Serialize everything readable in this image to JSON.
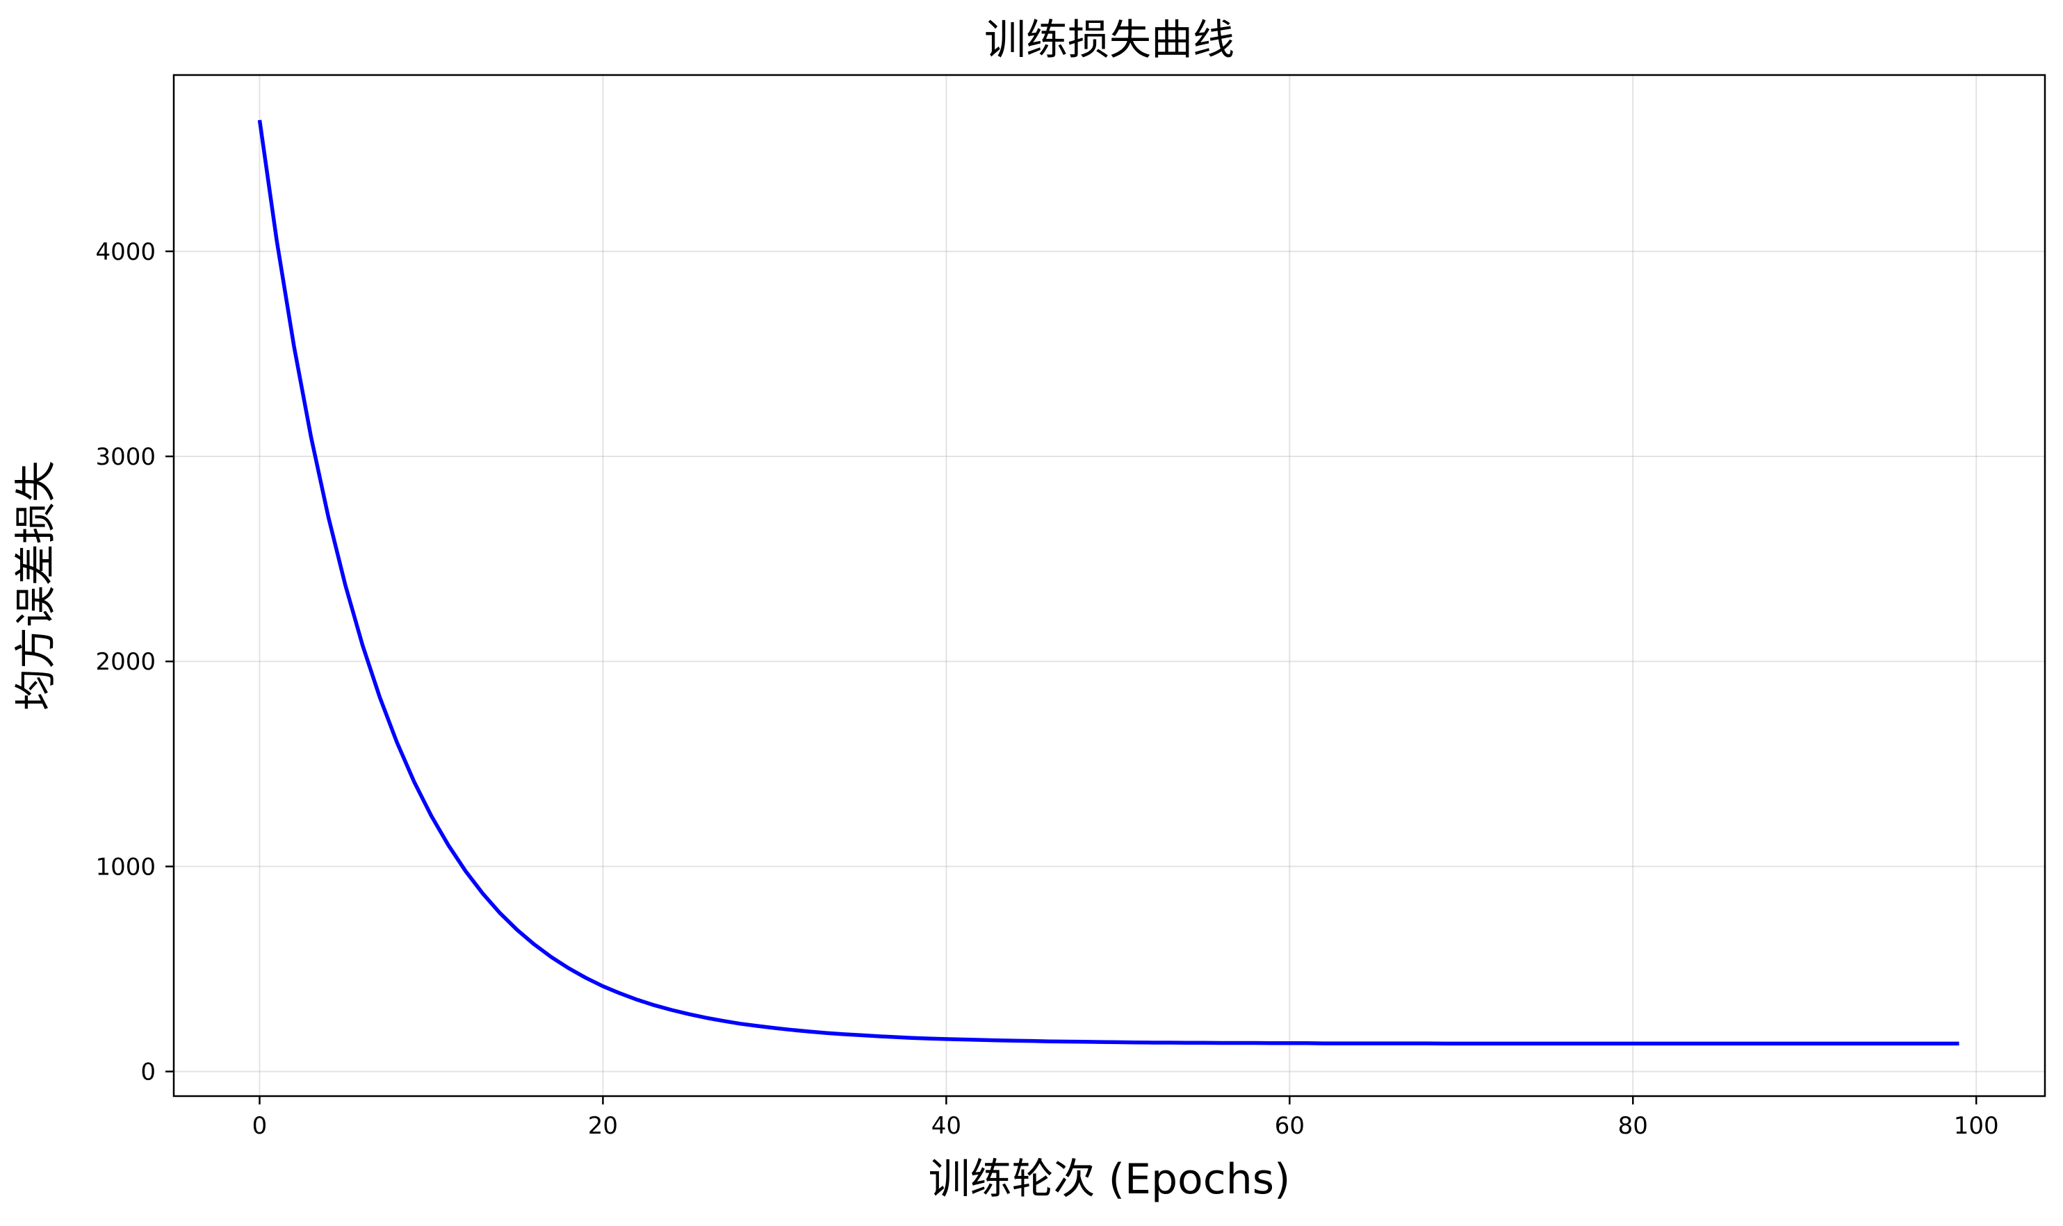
{
  "chart_data": {
    "type": "line",
    "title": "训练损失曲线",
    "xlabel": "训练轮次 (Epochs)",
    "ylabel": "均方误差损失",
    "xlim": [
      -5,
      104
    ],
    "ylim": [
      -120,
      4860
    ],
    "xticks": [
      0,
      20,
      40,
      60,
      80,
      100
    ],
    "yticks": [
      0,
      1000,
      2000,
      3000,
      4000
    ],
    "grid": true,
    "line_color": "#0000ff",
    "series": [
      {
        "x": [
          0,
          1,
          2,
          3,
          4,
          5,
          6,
          7,
          8,
          9,
          10,
          11,
          12,
          13,
          14,
          15,
          16,
          17,
          18,
          19,
          20,
          21,
          22,
          23,
          24,
          25,
          26,
          27,
          28,
          29,
          30,
          31,
          32,
          33,
          34,
          35,
          36,
          37,
          38,
          39,
          40,
          41,
          42,
          43,
          44,
          45,
          46,
          47,
          48,
          49,
          50,
          51,
          52,
          53,
          54,
          55,
          56,
          57,
          58,
          59,
          60,
          61,
          62,
          63,
          64,
          65,
          66,
          67,
          68,
          69,
          70,
          71,
          72,
          73,
          74,
          75,
          76,
          77,
          78,
          79,
          80,
          81,
          82,
          83,
          84,
          85,
          86,
          87,
          88,
          89,
          90,
          91,
          92,
          93,
          94,
          95,
          96,
          97,
          98,
          99
        ],
        "y": [
          4640,
          4051,
          3538,
          3093,
          2706,
          2370,
          2078,
          1825,
          1605,
          1413,
          1247,
          1103,
          977,
          868,
          773,
          691,
          620,
          558,
          504,
          457,
          416,
          381,
          350,
          323,
          300,
          280,
          262,
          247,
          233,
          222,
          212,
          203,
          195,
          188,
          182,
          177,
          172,
          168,
          164,
          161,
          158,
          156,
          154,
          152,
          150,
          149,
          147,
          146,
          145,
          144,
          143,
          142,
          141,
          141,
          140,
          140,
          139,
          139,
          139,
          138,
          138,
          138,
          137,
          137,
          137,
          137,
          137,
          137,
          137,
          136,
          136,
          136,
          136,
          136,
          136,
          136,
          136,
          136,
          136,
          136,
          136,
          136,
          136,
          136,
          136,
          136,
          136,
          136,
          136,
          136,
          136,
          136,
          136,
          136,
          136,
          136,
          136,
          136,
          136,
          136
        ]
      }
    ]
  }
}
